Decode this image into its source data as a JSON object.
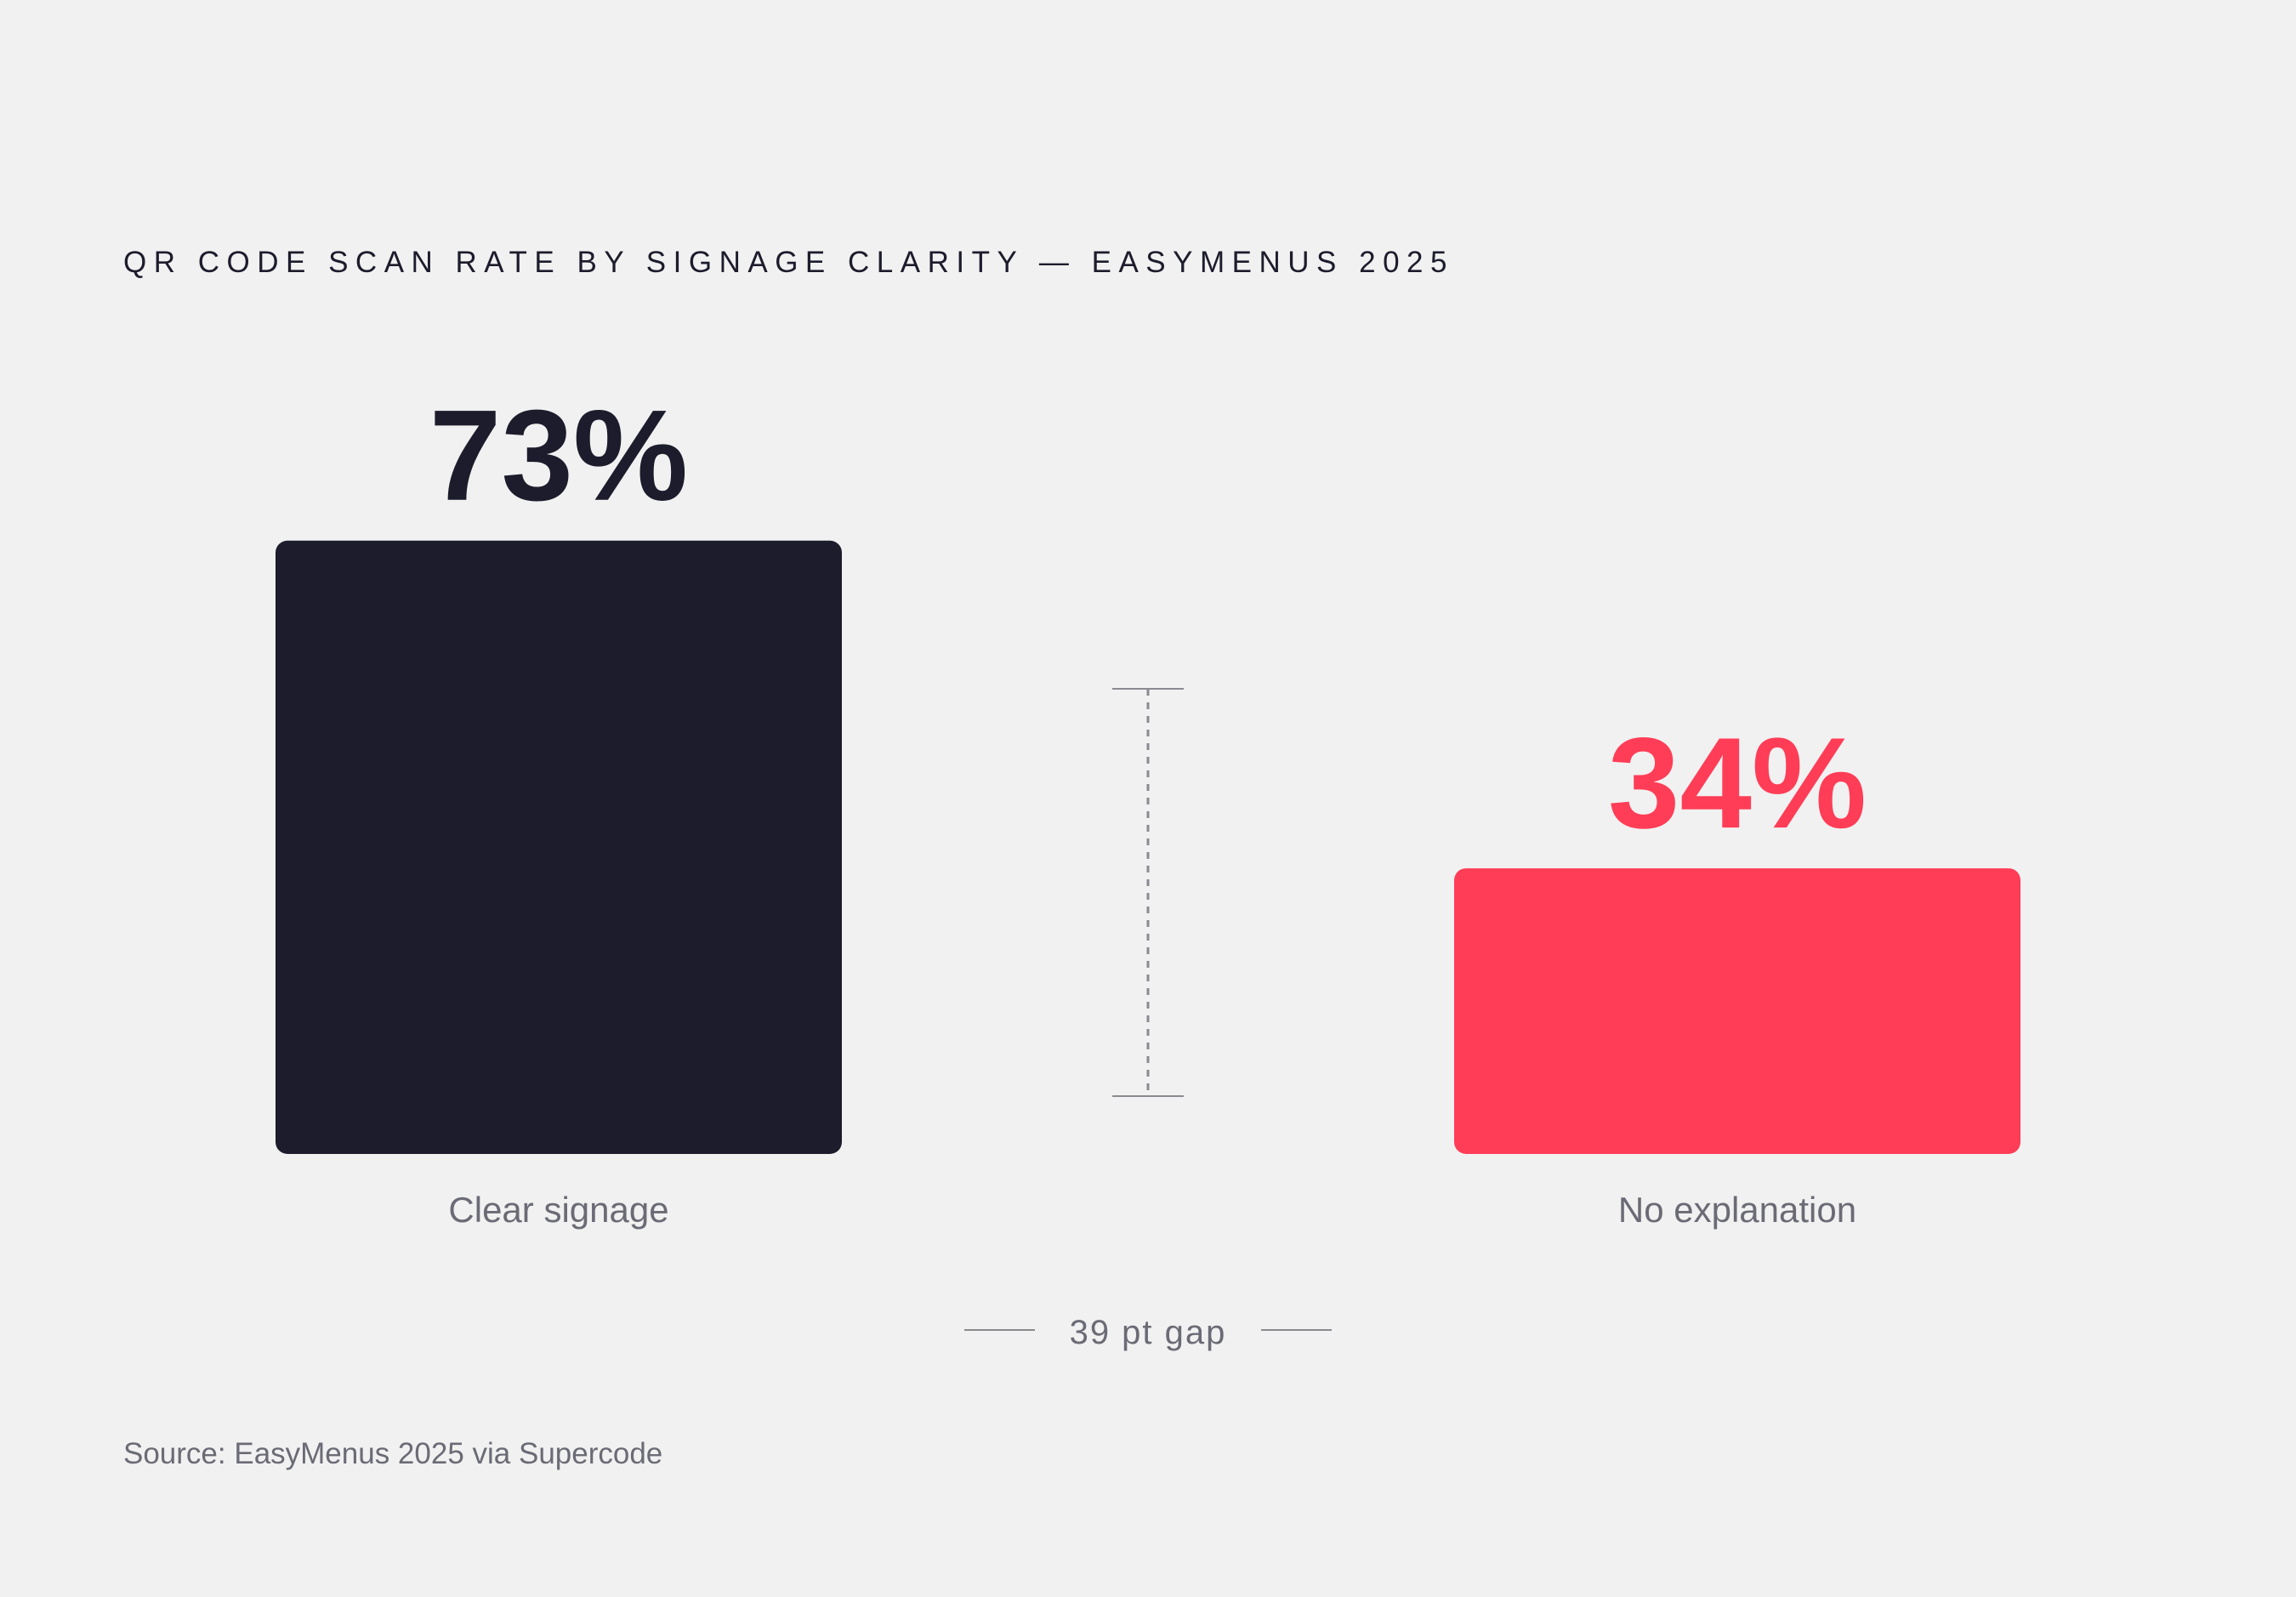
{
  "chart_data": {
    "type": "bar",
    "title": "QR CODE SCAN RATE BY SIGNAGE CLARITY — EASYMENUS 2025",
    "categories": [
      "Clear signage",
      "No explanation"
    ],
    "values": [
      73,
      34
    ],
    "value_labels": [
      "73%",
      "34%"
    ],
    "unit": "%",
    "ylim": [
      0,
      100
    ],
    "grid": false,
    "bar_colors": [
      "#1d1c2c",
      "#ff3d57"
    ],
    "gap_annotation": {
      "value": 39,
      "label": "39 pt gap"
    },
    "source": "Source: EasyMenus 2025 via Supercode"
  },
  "colors": {
    "background": "#f1f1f1",
    "dark": "#1d1c2c",
    "accent": "#ff3d57",
    "muted_text": "#6b6b76",
    "rule": "#8a8a90"
  }
}
